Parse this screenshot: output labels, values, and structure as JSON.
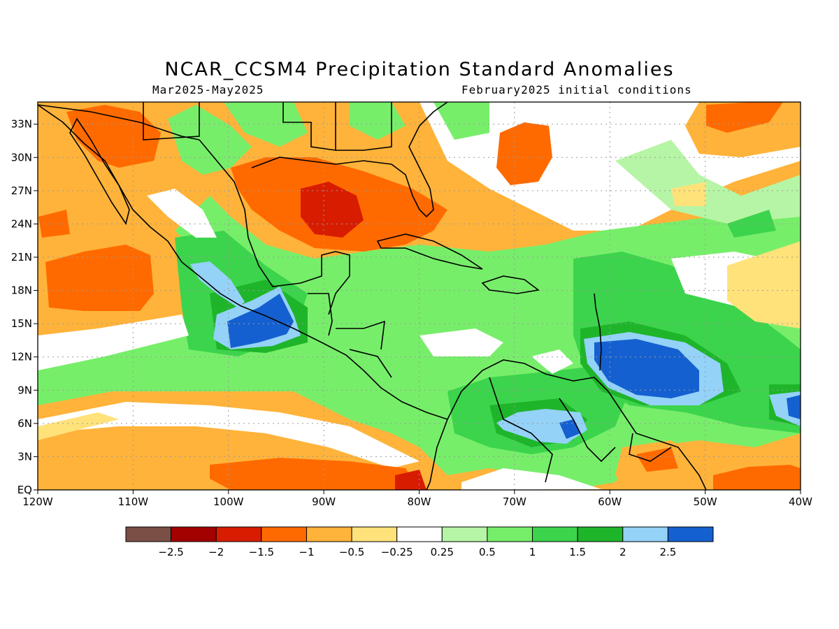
{
  "header": {
    "title": "NCAR_CCSM4 Precipitation Standard Anomalies",
    "period": "Mar2025-May2025",
    "init": "February2025 initial conditions"
  },
  "map": {
    "lon_range": [
      -120,
      -40
    ],
    "lat_range": [
      0,
      35
    ],
    "lon_labels": [
      "120W",
      "110W",
      "100W",
      "90W",
      "80W",
      "70W",
      "60W",
      "50W",
      "40W"
    ],
    "lat_labels": [
      "EQ",
      "3N",
      "6N",
      "9N",
      "12N",
      "15N",
      "18N",
      "21N",
      "24N",
      "27N",
      "30N",
      "33N"
    ],
    "grid": "dotted"
  },
  "legend": {
    "colors": [
      "#7a4f46",
      "#a30000",
      "#d81c00",
      "#ff6a00",
      "#ffb33a",
      "#ffe27a",
      "#ffffff",
      "#b6f5a5",
      "#77ee6a",
      "#3cd44c",
      "#1fb52b",
      "#94d2f8",
      "#1560d0"
    ],
    "labels": [
      "-2.5",
      "-2",
      "-1.5",
      "-1",
      "-0.5",
      "-0.25",
      "0.25",
      "0.5",
      "1",
      "1.5",
      "2",
      "2.5"
    ]
  }
}
